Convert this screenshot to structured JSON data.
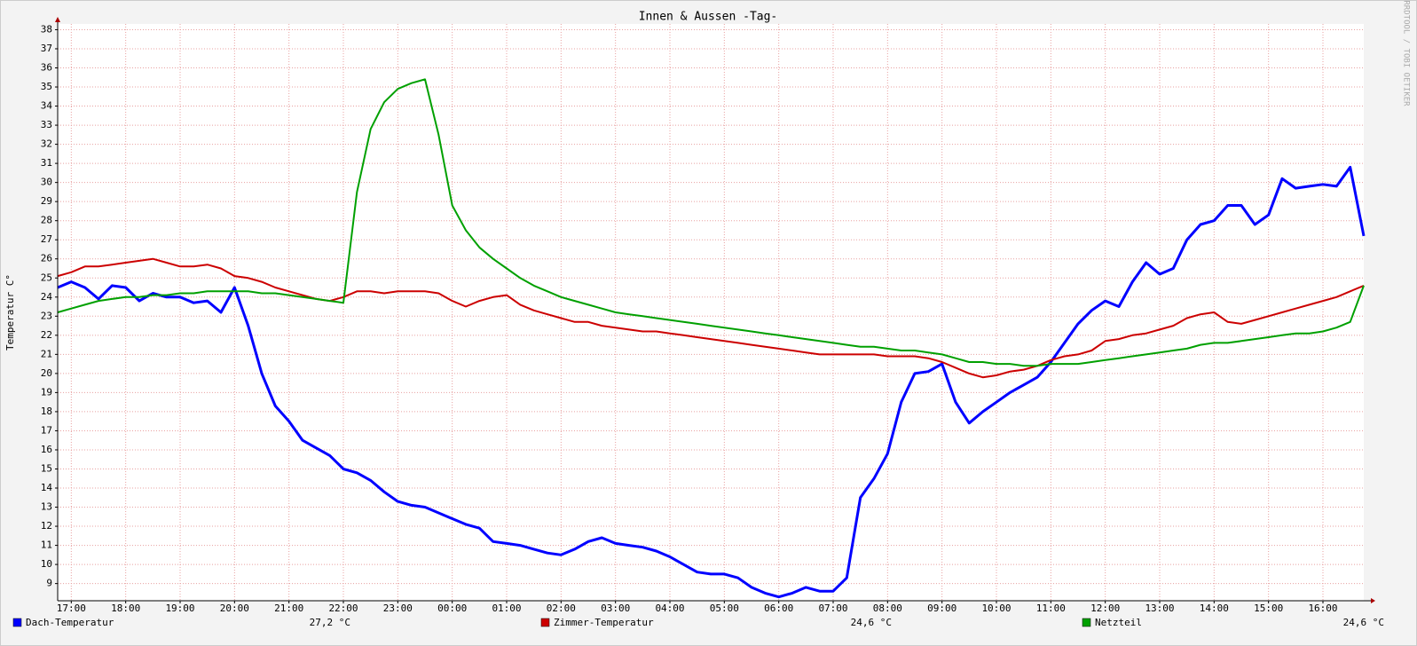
{
  "chart_data": {
    "type": "line",
    "title": "Innen & Aussen -Tag-",
    "y_label": "Temperatur C°",
    "watermark": "RRDTOOL / TOBI OETIKER",
    "x": [
      16.75,
      17,
      17.25,
      17.5,
      17.75,
      18,
      18.25,
      18.5,
      18.75,
      19,
      19.25,
      19.5,
      19.75,
      20,
      20.25,
      20.5,
      20.75,
      21,
      21.25,
      21.5,
      21.75,
      22,
      22.25,
      22.5,
      22.75,
      23,
      23.25,
      23.5,
      23.75,
      24,
      24.25,
      24.5,
      24.75,
      25,
      25.25,
      25.5,
      25.75,
      26,
      26.25,
      26.5,
      26.75,
      27,
      27.25,
      27.5,
      27.75,
      28,
      28.25,
      28.5,
      28.75,
      29,
      29.25,
      29.5,
      29.75,
      30,
      30.25,
      30.5,
      30.75,
      31,
      31.25,
      31.5,
      31.75,
      32,
      32.25,
      32.5,
      32.75,
      33,
      33.25,
      33.5,
      33.75,
      34,
      34.25,
      34.5,
      34.75,
      35,
      35.25,
      35.5,
      35.75,
      36,
      36.25,
      36.5,
      36.75,
      37,
      37.25,
      37.5,
      37.75,
      38,
      38.25,
      38.5,
      38.75,
      39,
      39.25,
      39.5,
      39.75,
      40,
      40.25,
      40.5,
      40.75
    ],
    "xlim": [
      16.75,
      40.75
    ],
    "xticks": [
      {
        "value": 17,
        "label": "17:00"
      },
      {
        "value": 18,
        "label": "18:00"
      },
      {
        "value": 19,
        "label": "19:00"
      },
      {
        "value": 20,
        "label": "20:00"
      },
      {
        "value": 21,
        "label": "21:00"
      },
      {
        "value": 22,
        "label": "22:00"
      },
      {
        "value": 23,
        "label": "23:00"
      },
      {
        "value": 24,
        "label": "00:00"
      },
      {
        "value": 25,
        "label": "01:00"
      },
      {
        "value": 26,
        "label": "02:00"
      },
      {
        "value": 27,
        "label": "03:00"
      },
      {
        "value": 28,
        "label": "04:00"
      },
      {
        "value": 29,
        "label": "05:00"
      },
      {
        "value": 30,
        "label": "06:00"
      },
      {
        "value": 31,
        "label": "07:00"
      },
      {
        "value": 32,
        "label": "08:00"
      },
      {
        "value": 33,
        "label": "09:00"
      },
      {
        "value": 34,
        "label": "10:00"
      },
      {
        "value": 35,
        "label": "11:00"
      },
      {
        "value": 36,
        "label": "12:00"
      },
      {
        "value": 37,
        "label": "13:00"
      },
      {
        "value": 38,
        "label": "14:00"
      },
      {
        "value": 39,
        "label": "15:00"
      },
      {
        "value": 40,
        "label": "16:00"
      }
    ],
    "ylim": [
      8.1,
      38.3
    ],
    "yticks": [
      9,
      10,
      11,
      12,
      13,
      14,
      15,
      16,
      17,
      18,
      19,
      20,
      21,
      22,
      23,
      24,
      25,
      26,
      27,
      28,
      29,
      30,
      31,
      32,
      33,
      34,
      35,
      36,
      37,
      38
    ],
    "grid": true,
    "series": [
      {
        "name": "Dach-Temperatur",
        "color": "#0000ff",
        "current": "27,2 °C",
        "values": [
          24.5,
          24.8,
          24.5,
          23.9,
          24.6,
          24.5,
          23.8,
          24.2,
          24.0,
          24.0,
          23.7,
          23.8,
          23.2,
          24.5,
          22.5,
          20.0,
          18.3,
          17.5,
          16.5,
          16.1,
          15.7,
          15.0,
          14.8,
          14.4,
          13.8,
          13.3,
          13.1,
          13.0,
          12.7,
          12.4,
          12.1,
          11.9,
          11.2,
          11.1,
          11.0,
          10.8,
          10.6,
          10.5,
          10.8,
          11.2,
          11.4,
          11.1,
          11.0,
          10.9,
          10.7,
          10.4,
          10.0,
          9.6,
          9.5,
          9.5,
          9.3,
          8.8,
          8.5,
          8.3,
          8.5,
          8.8,
          8.6,
          8.6,
          9.3,
          13.5,
          14.5,
          15.8,
          18.5,
          20.0,
          20.1,
          20.5,
          18.5,
          17.4,
          18.0,
          18.5,
          19.0,
          19.4,
          19.8,
          20.6,
          21.6,
          22.6,
          23.3,
          23.8,
          23.5,
          24.8,
          25.8,
          25.2,
          25.5,
          27.0,
          27.8,
          28.0,
          28.8,
          28.8,
          27.8,
          28.3,
          30.2,
          29.7,
          29.8,
          29.9,
          29.8,
          30.8,
          27.2
        ]
      },
      {
        "name": "Zimmer-Temperatur",
        "color": "#cc0000",
        "current": "24,6 °C",
        "values": [
          25.1,
          25.3,
          25.6,
          25.6,
          25.7,
          25.8,
          25.9,
          26.0,
          25.8,
          25.6,
          25.6,
          25.7,
          25.5,
          25.1,
          25.0,
          24.8,
          24.5,
          24.3,
          24.1,
          23.9,
          23.8,
          24.0,
          24.3,
          24.3,
          24.2,
          24.3,
          24.3,
          24.3,
          24.2,
          23.8,
          23.5,
          23.8,
          24.0,
          24.1,
          23.6,
          23.3,
          23.1,
          22.9,
          22.7,
          22.7,
          22.5,
          22.4,
          22.3,
          22.2,
          22.2,
          22.1,
          22.0,
          21.9,
          21.8,
          21.7,
          21.6,
          21.5,
          21.4,
          21.3,
          21.2,
          21.1,
          21.0,
          21.0,
          21.0,
          21.0,
          21.0,
          20.9,
          20.9,
          20.9,
          20.8,
          20.6,
          20.3,
          20.0,
          19.8,
          19.9,
          20.1,
          20.2,
          20.4,
          20.7,
          20.9,
          21.0,
          21.2,
          21.7,
          21.8,
          22.0,
          22.1,
          22.3,
          22.5,
          22.9,
          23.1,
          23.2,
          22.7,
          22.6,
          22.8,
          23.0,
          23.2,
          23.4,
          23.6,
          23.8,
          24.0,
          24.3,
          24.6
        ]
      },
      {
        "name": "Netzteil",
        "color": "#00a000",
        "current": "24,6 °C",
        "values": [
          23.2,
          23.4,
          23.6,
          23.8,
          23.9,
          24.0,
          24.0,
          24.1,
          24.1,
          24.2,
          24.2,
          24.3,
          24.3,
          24.3,
          24.3,
          24.2,
          24.2,
          24.1,
          24.0,
          23.9,
          23.8,
          23.7,
          29.5,
          32.8,
          34.2,
          34.9,
          35.2,
          35.4,
          32.5,
          28.8,
          27.5,
          26.6,
          26.0,
          25.5,
          25.0,
          24.6,
          24.3,
          24.0,
          23.8,
          23.6,
          23.4,
          23.2,
          23.1,
          23.0,
          22.9,
          22.8,
          22.7,
          22.6,
          22.5,
          22.4,
          22.3,
          22.2,
          22.1,
          22.0,
          21.9,
          21.8,
          21.7,
          21.6,
          21.5,
          21.4,
          21.4,
          21.3,
          21.2,
          21.2,
          21.1,
          21.0,
          20.8,
          20.6,
          20.6,
          20.5,
          20.5,
          20.4,
          20.4,
          20.5,
          20.5,
          20.5,
          20.6,
          20.7,
          20.8,
          20.9,
          21.0,
          21.1,
          21.2,
          21.3,
          21.5,
          21.6,
          21.6,
          21.7,
          21.8,
          21.9,
          22.0,
          22.1,
          22.1,
          22.2,
          22.4,
          22.7,
          24.6
        ]
      }
    ]
  }
}
